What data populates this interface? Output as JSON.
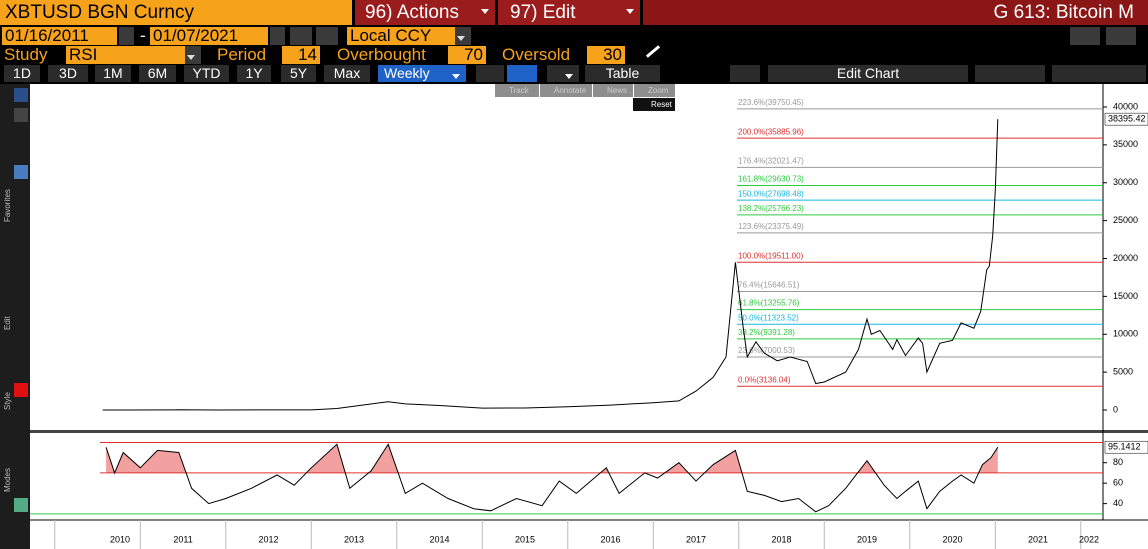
{
  "header": {
    "security": "XBTUSD BGN  Curncy",
    "actions": "96) Actions",
    "edit": "97) Edit",
    "title": "G 613: Bitcoin M"
  },
  "date_range": {
    "start": "01/16/2011",
    "separator": "-",
    "end": "01/07/2021",
    "currency": "Local CCY"
  },
  "study": {
    "label": "Study",
    "name": "RSI",
    "period_label": "Period",
    "period": 14,
    "overbought_label": "Overbought",
    "overbought": 70,
    "oversold_label": "Oversold",
    "oversold": 30
  },
  "toolbar": {
    "periods": [
      "1D",
      "3D",
      "1M",
      "6M",
      "YTD",
      "1Y",
      "5Y",
      "Max"
    ],
    "frequency": "Weekly",
    "table": "Table",
    "edit_chart": "Edit Chart"
  },
  "chart_tools": [
    "Track",
    "Annotate",
    "News",
    "Zoom"
  ],
  "reset": "Reset",
  "sidebar": [
    "Favorites",
    "Edit",
    "Style",
    "Modes"
  ],
  "chart_data": [
    {
      "type": "line",
      "color": "#000000",
      "x": [
        2010.56,
        2011.4,
        2011.45,
        2011.9,
        2012.5,
        2013.0,
        2013.3,
        2013.9,
        2014.1,
        2014.5,
        2015.0,
        2015.5,
        2016.0,
        2016.5,
        2017.0,
        2017.3,
        2017.5,
        2017.7,
        2017.85,
        2017.96,
        2018.05,
        2018.1,
        2018.2,
        2018.3,
        2018.45,
        2018.6,
        2018.8,
        2018.9,
        2019.0,
        2019.25,
        2019.4,
        2019.5,
        2019.55,
        2019.65,
        2019.8,
        2019.85,
        2019.95,
        2020.1,
        2020.15,
        2020.2,
        2020.35,
        2020.5,
        2020.6,
        2020.75,
        2020.83,
        2020.9,
        2020.93,
        2020.97,
        2021.0,
        2021.03
      ],
      "values": [
        0.07,
        8,
        30,
        3,
        7,
        14,
        200,
        1100,
        800,
        600,
        250,
        270,
        420,
        650,
        970,
        1200,
        2500,
        4300,
        7000,
        19500,
        11000,
        7000,
        9000,
        7500,
        6500,
        7000,
        6400,
        3500,
        3700,
        5000,
        8000,
        12000,
        10000,
        10500,
        8000,
        9300,
        7200,
        9500,
        8800,
        5000,
        8800,
        9200,
        11500,
        10800,
        13000,
        18500,
        19000,
        23000,
        29000,
        38395.42
      ],
      "xlim": [
        2009.71,
        2022.26
      ],
      "ylim": [
        -2640,
        43036
      ],
      "yticks": [
        0,
        5000,
        10000,
        15000,
        20000,
        25000,
        30000,
        35000,
        40000
      ],
      "grid": false,
      "levels": [
        {
          "value": 39750.45,
          "label": "223.6%(39750.45)",
          "color": "#999999"
        },
        {
          "value": 35885.96,
          "label": "200.0%(35885.96)",
          "color": "#e03030"
        },
        {
          "value": 32021.47,
          "label": "176.4%(32021.47)",
          "color": "#999999"
        },
        {
          "value": 29630.73,
          "label": "161.8%(29630.73)",
          "color": "#2ecc40"
        },
        {
          "value": 27698.48,
          "label": "150.0%(27698.48)",
          "color": "#19b8e0"
        },
        {
          "value": 25766.23,
          "label": "138.2%(25766.23)",
          "color": "#2ecc40"
        },
        {
          "value": 23375.49,
          "label": "123.6%(23375.49)",
          "color": "#999999"
        },
        {
          "value": 19511.0,
          "label": "100.0%(19511.00)",
          "color": "#e03030"
        },
        {
          "value": 15646.51,
          "label": "76.4%(15646.51)",
          "color": "#999999"
        },
        {
          "value": 13255.76,
          "label": "61.8%(13255.76)",
          "color": "#2ecc40"
        },
        {
          "value": 11323.52,
          "label": "50.0%(11323.52)",
          "color": "#19b8e0"
        },
        {
          "value": 9391.28,
          "label": "38.2%(9391.28)",
          "color": "#2ecc40"
        },
        {
          "value": 7000.53,
          "label": "23.6%(7000.53)",
          "color": "#999999"
        },
        {
          "value": 3136.04,
          "label": "0.0%(3136.04)",
          "color": "#e03030"
        }
      ]
    },
    {
      "type": "line",
      "color": "#000000",
      "x": [
        2010.6,
        2010.7,
        2010.8,
        2011.0,
        2011.2,
        2011.45,
        2011.6,
        2011.8,
        2012.0,
        2012.3,
        2012.6,
        2012.8,
        2013.0,
        2013.3,
        2013.45,
        2013.7,
        2013.9,
        2014.1,
        2014.3,
        2014.6,
        2014.9,
        2015.1,
        2015.4,
        2015.7,
        2015.9,
        2016.1,
        2016.45,
        2016.6,
        2016.9,
        2017.05,
        2017.3,
        2017.5,
        2017.7,
        2017.96,
        2018.1,
        2018.3,
        2018.5,
        2018.7,
        2018.9,
        2019.05,
        2019.25,
        2019.5,
        2019.7,
        2019.85,
        2019.95,
        2020.1,
        2020.2,
        2020.35,
        2020.5,
        2020.6,
        2020.75,
        2020.85,
        2020.95,
        2021.03
      ],
      "values": [
        95,
        70,
        90,
        75,
        92,
        90,
        55,
        40,
        45,
        55,
        68,
        58,
        75,
        98,
        55,
        72,
        98,
        50,
        60,
        45,
        35,
        33,
        45,
        38,
        62,
        50,
        75,
        50,
        70,
        65,
        80,
        62,
        78,
        92,
        52,
        48,
        42,
        45,
        32,
        38,
        55,
        82,
        58,
        45,
        52,
        62,
        35,
        52,
        62,
        68,
        60,
        78,
        85,
        95.1412
      ],
      "xlim": [
        2009.71,
        2022.26
      ],
      "ylim": [
        24,
        110
      ],
      "yticks": [
        40,
        60,
        80
      ],
      "xticks": [
        2010,
        2011,
        2012,
        2013,
        2014,
        2015,
        2016,
        2017,
        2018,
        2019,
        2020,
        2021,
        2022
      ]
    }
  ]
}
